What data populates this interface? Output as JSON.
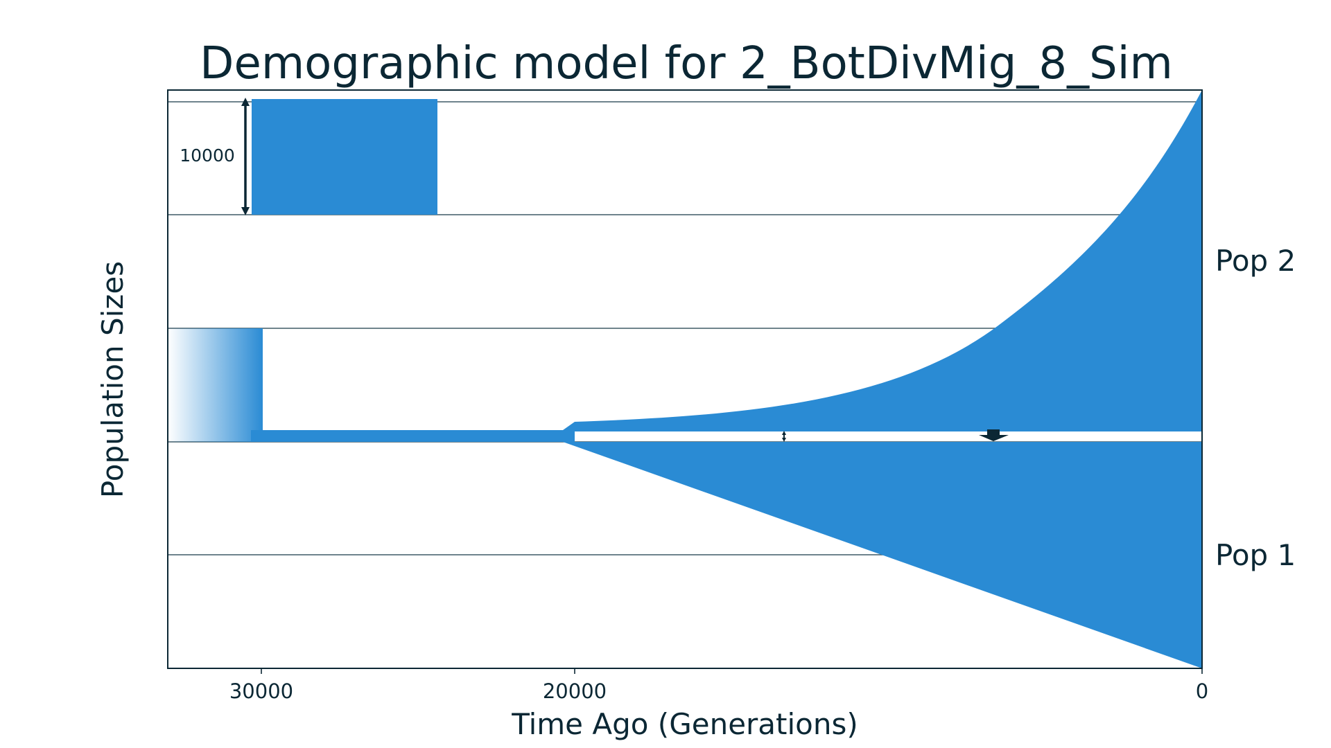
{
  "title": "Demographic model for 2_BotDivMig_8_Sim",
  "xlabel": "Time Ago (Generations)",
  "ylabel": "Population Sizes",
  "x_ticks": [
    "30000",
    "20000",
    "0"
  ],
  "pop_labels": [
    "Pop 2",
    "Pop 1"
  ],
  "scale_bar_label": "10000",
  "colors": {
    "population": "#2a8bd4",
    "ink": "#0b2734",
    "grid": "#3f5a66"
  }
}
